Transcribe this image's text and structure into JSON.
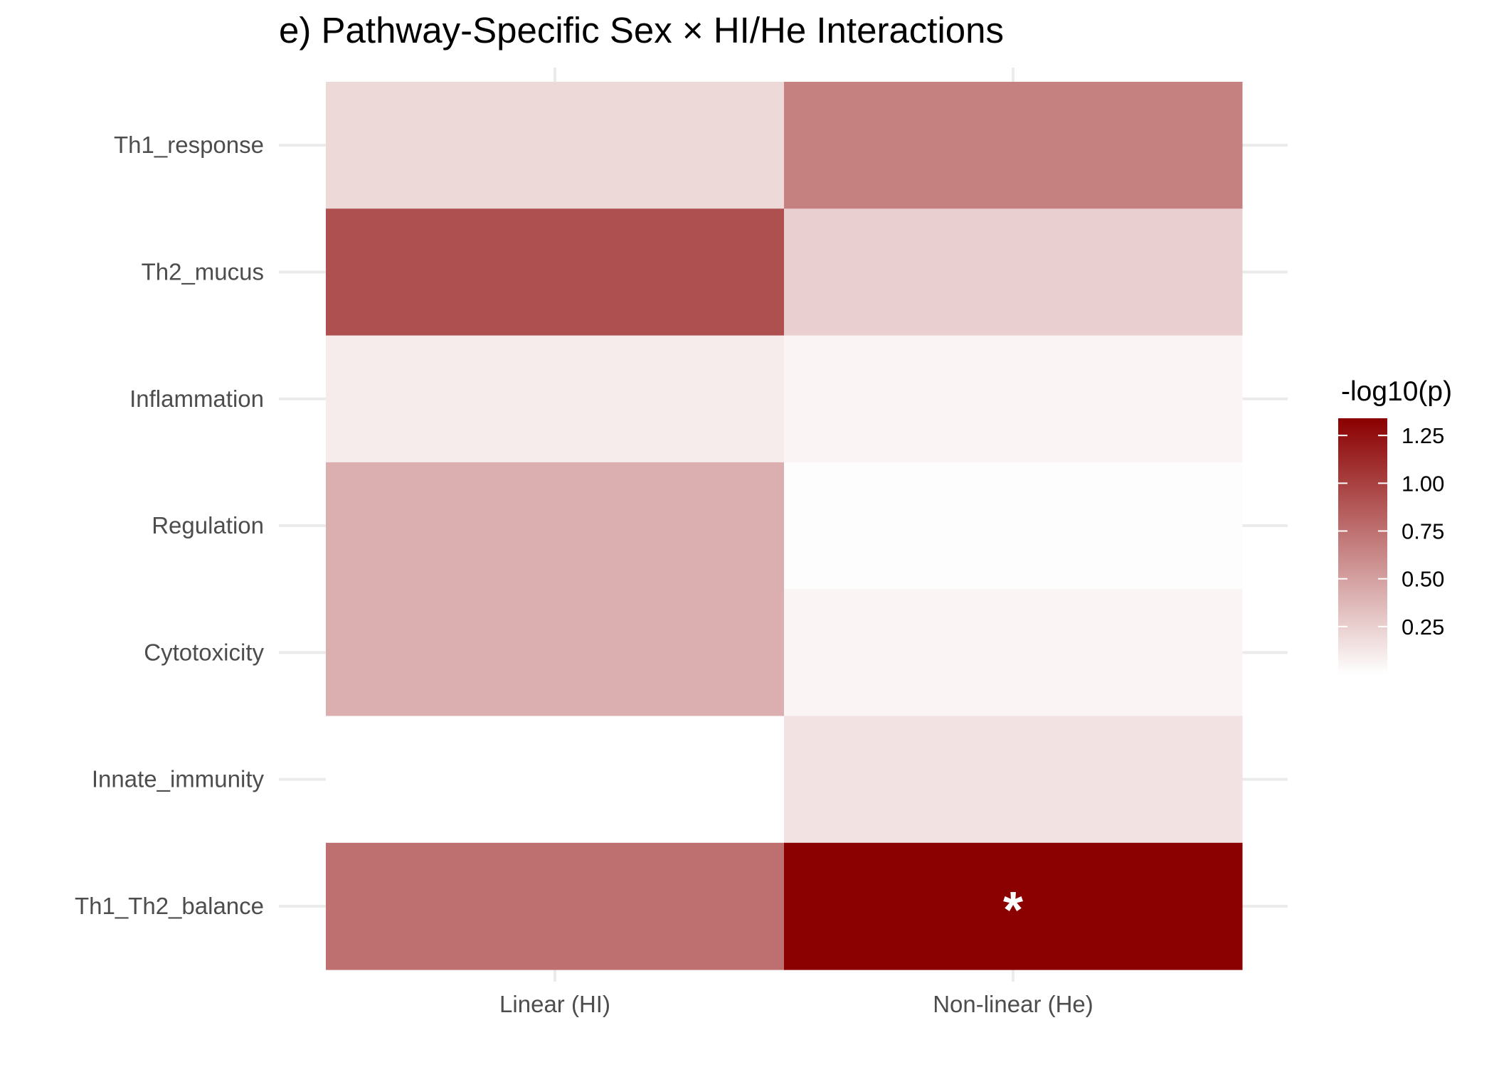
{
  "chart_data": {
    "type": "heatmap",
    "title": "e) Pathway-Specific Sex × HI/He Interactions",
    "xlabel": "",
    "ylabel": "",
    "x_categories": [
      "Linear (HI)",
      "Non-linear (He)"
    ],
    "y_categories": [
      "Th1_response",
      "Th2_mucus",
      "Inflammation",
      "Regulation",
      "Cytotoxicity",
      "Innate_immunity",
      "Th1_Th2_balance"
    ],
    "values": [
      [
        0.2,
        0.67
      ],
      [
        0.92,
        0.25
      ],
      [
        0.1,
        0.06
      ],
      [
        0.42,
        0.01
      ],
      [
        0.42,
        0.06
      ],
      [
        0.0,
        0.15
      ],
      [
        0.75,
        1.34
      ]
    ],
    "annotations": [
      {
        "row": "Th1_Th2_balance",
        "col": "Non-linear (He)",
        "text": "*"
      }
    ],
    "legend": {
      "title": "-log10(p)",
      "ticks": [
        "0.25",
        "0.50",
        "0.75",
        "1.00",
        "1.25"
      ],
      "tick_values": [
        0.25,
        0.5,
        0.75,
        1.0,
        1.25
      ],
      "range": [
        0.0,
        1.34
      ],
      "low_color": "#ffffff",
      "high_color": "#8b0000",
      "placement": "right"
    },
    "grid": true
  }
}
